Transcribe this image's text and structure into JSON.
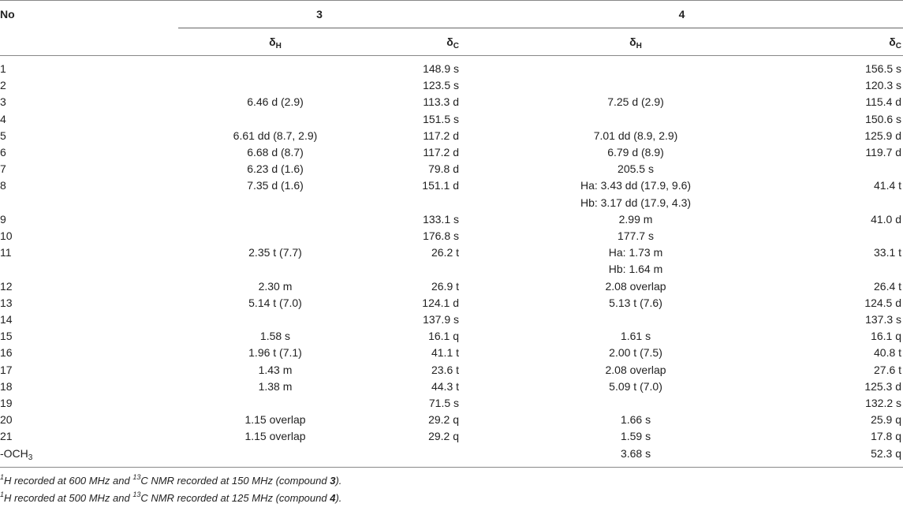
{
  "table": {
    "header": {
      "no_label": "No",
      "compound_3": "3",
      "compound_4": "4",
      "delta": "δ",
      "h_sub": "H",
      "c_sub": "C"
    },
    "rows": [
      {
        "no": "1",
        "h3": "",
        "c3": "148.9 s",
        "h4": "",
        "c4": "156.5 s"
      },
      {
        "no": "2",
        "h3": "",
        "c3": "123.5 s",
        "h4": "",
        "c4": "120.3 s"
      },
      {
        "no": "3",
        "h3": "6.46 d (2.9)",
        "c3": "113.3 d",
        "h4": "7.25 d (2.9)",
        "c4": "115.4 d"
      },
      {
        "no": "4",
        "h3": "",
        "c3": "151.5 s",
        "h4": "",
        "c4": "150.6 s"
      },
      {
        "no": "5",
        "h3": "6.61 dd (8.7, 2.9)",
        "c3": "117.2 d",
        "h4": "7.01 dd (8.9, 2.9)",
        "c4": "125.9 d"
      },
      {
        "no": "6",
        "h3": "6.68 d (8.7)",
        "c3": "117.2 d",
        "h4": "6.79 d (8.9)",
        "c4": "119.7 d"
      },
      {
        "no": "7",
        "h3": "6.23 d (1.6)",
        "c3": "79.8 d",
        "h4": "205.5 s",
        "c4": ""
      },
      {
        "no": "8",
        "h3": "7.35 d (1.6)",
        "c3": "151.1 d",
        "h4": "Ha: 3.43 dd (17.9, 9.6)",
        "c4": "41.4 t"
      },
      {
        "no": "",
        "h3": "",
        "c3": "",
        "h4": "Hb: 3.17 dd (17.9, 4.3)",
        "c4": ""
      },
      {
        "no": "9",
        "h3": "",
        "c3": "133.1 s",
        "h4": "2.99 m",
        "c4": "41.0 d"
      },
      {
        "no": "10",
        "h3": "",
        "c3": "176.8 s",
        "h4": "177.7 s",
        "c4": ""
      },
      {
        "no": "11",
        "h3": "2.35 t (7.7)",
        "c3": "26.2 t",
        "h4": "Ha: 1.73 m",
        "c4": "33.1 t"
      },
      {
        "no": "",
        "h3": "",
        "c3": "",
        "h4": "Hb: 1.64 m",
        "c4": ""
      },
      {
        "no": "12",
        "h3": "2.30 m",
        "c3": "26.9 t",
        "h4": "2.08 overlap",
        "c4": "26.4 t"
      },
      {
        "no": "13",
        "h3": "5.14 t (7.0)",
        "c3": "124.1 d",
        "h4": "5.13 t (7.6)",
        "c4": "124.5 d"
      },
      {
        "no": "14",
        "h3": "",
        "c3": "137.9 s",
        "h4": "",
        "c4": "137.3 s"
      },
      {
        "no": "15",
        "h3": "1.58 s",
        "c3": "16.1 q",
        "h4": "1.61 s",
        "c4": "16.1 q"
      },
      {
        "no": "16",
        "h3": "1.96 t (7.1)",
        "c3": "41.1 t",
        "h4": "2.00 t (7.5)",
        "c4": "40.8 t"
      },
      {
        "no": "17",
        "h3": "1.43 m",
        "c3": "23.6 t",
        "h4": "2.08 overlap",
        "c4": "27.6 t"
      },
      {
        "no": "18",
        "h3": "1.38 m",
        "c3": "44.3 t",
        "h4": "5.09 t (7.0)",
        "c4": "125.3 d"
      },
      {
        "no": "19",
        "h3": "",
        "c3": "71.5 s",
        "h4": "",
        "c4": "132.2 s"
      },
      {
        "no": "20",
        "h3": "1.15 overlap",
        "c3": "29.2 q",
        "h4": "1.66 s",
        "c4": "25.9 q"
      },
      {
        "no": "21",
        "h3": "1.15 overlap",
        "c3": "29.2 q",
        "h4": "1.59 s",
        "c4": "17.8 q"
      },
      {
        "no": "-OCH",
        "no_sub": "3",
        "h3": "",
        "c3": "",
        "h4": "3.68 s",
        "c4": "52.3 q"
      }
    ]
  },
  "footnotes": [
    {
      "sup1": "1",
      "a": "H recorded at 600 MHz and ",
      "sup2": "13",
      "b": "C NMR recorded at 150 MHz (compound ",
      "compound": "3",
      "c": ")."
    },
    {
      "sup1": "1",
      "a": "H recorded at 500 MHz and ",
      "sup2": "13",
      "b": "C NMR recorded at 125 MHz (compound ",
      "compound": "4",
      "c": ")."
    }
  ]
}
